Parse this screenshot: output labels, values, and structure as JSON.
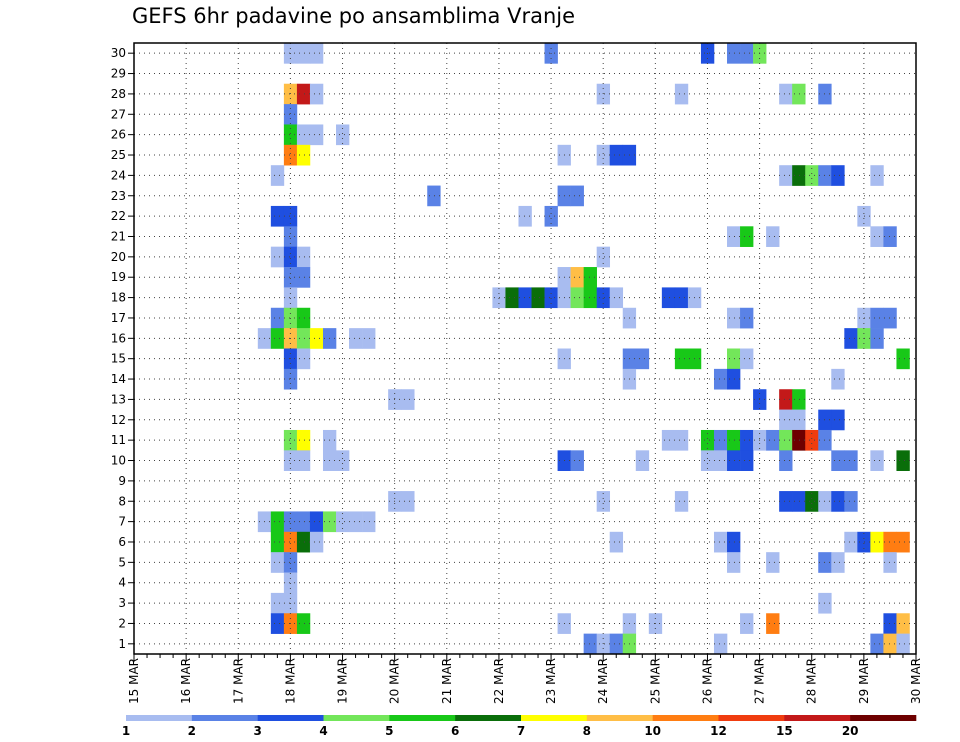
{
  "chart_data": {
    "type": "heatmap",
    "title": "GEFS 6hr padavine po ansamblima Vranje",
    "xlabel": "",
    "ylabel": "",
    "x_tick_labels": [
      "15 MAR",
      "16 MAR",
      "17 MAR",
      "18 MAR",
      "19 MAR",
      "20 MAR",
      "21 MAR",
      "22 MAR",
      "23 MAR",
      "24 MAR",
      "25 MAR",
      "26 MAR",
      "27 MAR",
      "28 MAR",
      "29 MAR",
      "30 MAR"
    ],
    "xlim_days": [
      15,
      30
    ],
    "step_hours": 6,
    "y_tick_labels": [
      "1",
      "2",
      "3",
      "4",
      "5",
      "6",
      "7",
      "8",
      "9",
      "10",
      "11",
      "12",
      "13",
      "14",
      "15",
      "16",
      "17",
      "18",
      "19",
      "20",
      "21",
      "22",
      "23",
      "24",
      "25",
      "26",
      "27",
      "28",
      "29",
      "30"
    ],
    "ylim": [
      0.5,
      30.5
    ],
    "grid": true,
    "legend": {
      "position": "bottom",
      "labels": [
        "1",
        "2",
        "3",
        "4",
        "5",
        "6",
        "7",
        "8",
        "10",
        "12",
        "15",
        "20"
      ],
      "colors": [
        "#a8bcf0",
        "#5a82e6",
        "#1f4fe0",
        "#73e65a",
        "#18c818",
        "#0a6e0a",
        "#ffff00",
        "#ffbe46",
        "#ff7d12",
        "#f03c0f",
        "#c31919",
        "#6e0000"
      ]
    },
    "levels": [
      1,
      2,
      3,
      4,
      5,
      6,
      7,
      8,
      10,
      12,
      15,
      20
    ],
    "cells": [
      {
        "member": 30,
        "time": "18.00",
        "value": 1
      },
      {
        "member": 30,
        "time": "18.25",
        "value": 1
      },
      {
        "member": 30,
        "time": "18.50",
        "value": 1
      },
      {
        "member": 30,
        "time": "23.00",
        "value": 2
      },
      {
        "member": 30,
        "time": "26.00",
        "value": 3
      },
      {
        "member": 30,
        "time": "26.50",
        "value": 2
      },
      {
        "member": 30,
        "time": "26.75",
        "value": 2
      },
      {
        "member": 30,
        "time": "27.00",
        "value": 4
      },
      {
        "member": 28,
        "time": "18.00",
        "value": 8
      },
      {
        "member": 28,
        "time": "18.25",
        "value": 15
      },
      {
        "member": 28,
        "time": "18.50",
        "value": 1
      },
      {
        "member": 28,
        "time": "24.00",
        "value": 1
      },
      {
        "member": 28,
        "time": "25.50",
        "value": 1
      },
      {
        "member": 28,
        "time": "27.50",
        "value": 1
      },
      {
        "member": 28,
        "time": "27.75",
        "value": 4
      },
      {
        "member": 28,
        "time": "28.25",
        "value": 2
      },
      {
        "member": 27,
        "time": "18.00",
        "value": 2
      },
      {
        "member": 26,
        "time": "18.00",
        "value": 5
      },
      {
        "member": 26,
        "time": "18.25",
        "value": 1
      },
      {
        "member": 26,
        "time": "18.50",
        "value": 1
      },
      {
        "member": 26,
        "time": "19.00",
        "value": 1
      },
      {
        "member": 25,
        "time": "18.00",
        "value": 10
      },
      {
        "member": 25,
        "time": "18.25",
        "value": 7
      },
      {
        "member": 25,
        "time": "23.25",
        "value": 1
      },
      {
        "member": 25,
        "time": "24.00",
        "value": 1
      },
      {
        "member": 25,
        "time": "24.25",
        "value": 3
      },
      {
        "member": 25,
        "time": "24.50",
        "value": 3
      },
      {
        "member": 24,
        "time": "17.75",
        "value": 1
      },
      {
        "member": 24,
        "time": "27.50",
        "value": 1
      },
      {
        "member": 24,
        "time": "27.75",
        "value": 6
      },
      {
        "member": 24,
        "time": "28.00",
        "value": 4
      },
      {
        "member": 24,
        "time": "28.25",
        "value": 2
      },
      {
        "member": 24,
        "time": "28.50",
        "value": 3
      },
      {
        "member": 24,
        "time": "29.25",
        "value": 1
      },
      {
        "member": 23,
        "time": "20.75",
        "value": 2
      },
      {
        "member": 23,
        "time": "23.25",
        "value": 2
      },
      {
        "member": 23,
        "time": "23.50",
        "value": 2
      },
      {
        "member": 22,
        "time": "17.75",
        "value": 3
      },
      {
        "member": 22,
        "time": "18.00",
        "value": 3
      },
      {
        "member": 22,
        "time": "22.50",
        "value": 1
      },
      {
        "member": 22,
        "time": "23.00",
        "value": 2
      },
      {
        "member": 22,
        "time": "29.00",
        "value": 1
      },
      {
        "member": 21,
        "time": "18.00",
        "value": 2
      },
      {
        "member": 21,
        "time": "26.50",
        "value": 1
      },
      {
        "member": 21,
        "time": "26.75",
        "value": 5
      },
      {
        "member": 21,
        "time": "27.25",
        "value": 1
      },
      {
        "member": 21,
        "time": "29.25",
        "value": 1
      },
      {
        "member": 21,
        "time": "29.50",
        "value": 2
      },
      {
        "member": 20,
        "time": "17.75",
        "value": 1
      },
      {
        "member": 20,
        "time": "18.00",
        "value": 3
      },
      {
        "member": 20,
        "time": "18.25",
        "value": 1
      },
      {
        "member": 20,
        "time": "24.00",
        "value": 1
      },
      {
        "member": 19,
        "time": "18.00",
        "value": 2
      },
      {
        "member": 19,
        "time": "18.25",
        "value": 2
      },
      {
        "member": 19,
        "time": "23.25",
        "value": 1
      },
      {
        "member": 19,
        "time": "23.50",
        "value": 8
      },
      {
        "member": 19,
        "time": "23.75",
        "value": 5
      },
      {
        "member": 18,
        "time": "18.00",
        "value": 1
      },
      {
        "member": 18,
        "time": "22.00",
        "value": 1
      },
      {
        "member": 18,
        "time": "22.25",
        "value": 6
      },
      {
        "member": 18,
        "time": "22.50",
        "value": 3
      },
      {
        "member": 18,
        "time": "22.75",
        "value": 6
      },
      {
        "member": 18,
        "time": "23.00",
        "value": 3
      },
      {
        "member": 18,
        "time": "23.25",
        "value": 1
      },
      {
        "member": 18,
        "time": "23.50",
        "value": 4
      },
      {
        "member": 18,
        "time": "23.75",
        "value": 5
      },
      {
        "member": 18,
        "time": "24.00",
        "value": 3
      },
      {
        "member": 18,
        "time": "24.25",
        "value": 1
      },
      {
        "member": 18,
        "time": "25.25",
        "value": 3
      },
      {
        "member": 18,
        "time": "25.50",
        "value": 3
      },
      {
        "member": 18,
        "time": "25.75",
        "value": 1
      },
      {
        "member": 17,
        "time": "17.75",
        "value": 2
      },
      {
        "member": 17,
        "time": "18.00",
        "value": 4
      },
      {
        "member": 17,
        "time": "18.25",
        "value": 5
      },
      {
        "member": 17,
        "time": "24.50",
        "value": 1
      },
      {
        "member": 17,
        "time": "26.50",
        "value": 1
      },
      {
        "member": 17,
        "time": "26.75",
        "value": 2
      },
      {
        "member": 17,
        "time": "29.00",
        "value": 1
      },
      {
        "member": 17,
        "time": "29.25",
        "value": 2
      },
      {
        "member": 17,
        "time": "29.50",
        "value": 2
      },
      {
        "member": 16,
        "time": "17.50",
        "value": 1
      },
      {
        "member": 16,
        "time": "17.75",
        "value": 5
      },
      {
        "member": 16,
        "time": "18.00",
        "value": 8
      },
      {
        "member": 16,
        "time": "18.25",
        "value": 4
      },
      {
        "member": 16,
        "time": "18.50",
        "value": 7
      },
      {
        "member": 16,
        "time": "18.75",
        "value": 2
      },
      {
        "member": 16,
        "time": "19.25",
        "value": 1
      },
      {
        "member": 16,
        "time": "19.50",
        "value": 1
      },
      {
        "member": 16,
        "time": "28.75",
        "value": 3
      },
      {
        "member": 16,
        "time": "29.00",
        "value": 4
      },
      {
        "member": 16,
        "time": "29.25",
        "value": 2
      },
      {
        "member": 15,
        "time": "18.00",
        "value": 3
      },
      {
        "member": 15,
        "time": "18.25",
        "value": 1
      },
      {
        "member": 15,
        "time": "23.25",
        "value": 1
      },
      {
        "member": 15,
        "time": "24.50",
        "value": 2
      },
      {
        "member": 15,
        "time": "24.75",
        "value": 2
      },
      {
        "member": 15,
        "time": "25.50",
        "value": 5
      },
      {
        "member": 15,
        "time": "25.75",
        "value": 5
      },
      {
        "member": 15,
        "time": "26.50",
        "value": 4
      },
      {
        "member": 15,
        "time": "26.75",
        "value": 1
      },
      {
        "member": 15,
        "time": "29.75",
        "value": 5
      },
      {
        "member": 14,
        "time": "18.00",
        "value": 2
      },
      {
        "member": 14,
        "time": "24.50",
        "value": 1
      },
      {
        "member": 14,
        "time": "26.25",
        "value": 2
      },
      {
        "member": 14,
        "time": "26.50",
        "value": 3
      },
      {
        "member": 14,
        "time": "28.50",
        "value": 1
      },
      {
        "member": 13,
        "time": "20.00",
        "value": 1
      },
      {
        "member": 13,
        "time": "20.25",
        "value": 1
      },
      {
        "member": 13,
        "time": "27.00",
        "value": 3
      },
      {
        "member": 13,
        "time": "27.50",
        "value": 15
      },
      {
        "member": 13,
        "time": "27.75",
        "value": 5
      },
      {
        "member": 12,
        "time": "27.50",
        "value": 1
      },
      {
        "member": 12,
        "time": "27.75",
        "value": 1
      },
      {
        "member": 12,
        "time": "28.25",
        "value": 3
      },
      {
        "member": 12,
        "time": "28.50",
        "value": 3
      },
      {
        "member": 11,
        "time": "18.00",
        "value": 4
      },
      {
        "member": 11,
        "time": "18.25",
        "value": 7
      },
      {
        "member": 11,
        "time": "18.75",
        "value": 1
      },
      {
        "member": 11,
        "time": "25.25",
        "value": 1
      },
      {
        "member": 11,
        "time": "25.50",
        "value": 1
      },
      {
        "member": 11,
        "time": "26.00",
        "value": 5
      },
      {
        "member": 11,
        "time": "26.25",
        "value": 2
      },
      {
        "member": 11,
        "time": "26.50",
        "value": 5
      },
      {
        "member": 11,
        "time": "26.75",
        "value": 3
      },
      {
        "member": 11,
        "time": "27.00",
        "value": 1
      },
      {
        "member": 11,
        "time": "27.25",
        "value": 2
      },
      {
        "member": 11,
        "time": "27.50",
        "value": 4
      },
      {
        "member": 11,
        "time": "27.75",
        "value": 20
      },
      {
        "member": 11,
        "time": "28.00",
        "value": 12
      },
      {
        "member": 11,
        "time": "28.25",
        "value": 2
      },
      {
        "member": 10,
        "time": "18.00",
        "value": 1
      },
      {
        "member": 10,
        "time": "18.25",
        "value": 1
      },
      {
        "member": 10,
        "time": "18.75",
        "value": 1
      },
      {
        "member": 10,
        "time": "19.00",
        "value": 1
      },
      {
        "member": 10,
        "time": "23.25",
        "value": 3
      },
      {
        "member": 10,
        "time": "23.50",
        "value": 2
      },
      {
        "member": 10,
        "time": "24.75",
        "value": 1
      },
      {
        "member": 10,
        "time": "26.00",
        "value": 1
      },
      {
        "member": 10,
        "time": "26.25",
        "value": 1
      },
      {
        "member": 10,
        "time": "26.50",
        "value": 3
      },
      {
        "member": 10,
        "time": "26.75",
        "value": 3
      },
      {
        "member": 10,
        "time": "27.50",
        "value": 2
      },
      {
        "member": 10,
        "time": "28.50",
        "value": 2
      },
      {
        "member": 10,
        "time": "28.75",
        "value": 2
      },
      {
        "member": 10,
        "time": "29.25",
        "value": 1
      },
      {
        "member": 10,
        "time": "29.75",
        "value": 6
      },
      {
        "member": 8,
        "time": "20.00",
        "value": 1
      },
      {
        "member": 8,
        "time": "20.25",
        "value": 1
      },
      {
        "member": 8,
        "time": "24.00",
        "value": 1
      },
      {
        "member": 8,
        "time": "25.50",
        "value": 1
      },
      {
        "member": 8,
        "time": "27.50",
        "value": 3
      },
      {
        "member": 8,
        "time": "27.75",
        "value": 3
      },
      {
        "member": 8,
        "time": "28.00",
        "value": 6
      },
      {
        "member": 8,
        "time": "28.25",
        "value": 1
      },
      {
        "member": 8,
        "time": "28.50",
        "value": 3
      },
      {
        "member": 8,
        "time": "28.75",
        "value": 2
      },
      {
        "member": 7,
        "time": "17.50",
        "value": 1
      },
      {
        "member": 7,
        "time": "17.75",
        "value": 5
      },
      {
        "member": 7,
        "time": "18.00",
        "value": 2
      },
      {
        "member": 7,
        "time": "18.25",
        "value": 2
      },
      {
        "member": 7,
        "time": "18.50",
        "value": 3
      },
      {
        "member": 7,
        "time": "18.75",
        "value": 4
      },
      {
        "member": 7,
        "time": "19.00",
        "value": 1
      },
      {
        "member": 7,
        "time": "19.25",
        "value": 1
      },
      {
        "member": 7,
        "time": "19.50",
        "value": 1
      },
      {
        "member": 6,
        "time": "17.75",
        "value": 5
      },
      {
        "member": 6,
        "time": "18.00",
        "value": 10
      },
      {
        "member": 6,
        "time": "18.25",
        "value": 6
      },
      {
        "member": 6,
        "time": "18.50",
        "value": 1
      },
      {
        "member": 6,
        "time": "24.25",
        "value": 1
      },
      {
        "member": 6,
        "time": "26.25",
        "value": 1
      },
      {
        "member": 6,
        "time": "26.50",
        "value": 3
      },
      {
        "member": 6,
        "time": "28.75",
        "value": 1
      },
      {
        "member": 6,
        "time": "29.00",
        "value": 3
      },
      {
        "member": 6,
        "time": "29.25",
        "value": 7
      },
      {
        "member": 6,
        "time": "29.50",
        "value": 10
      },
      {
        "member": 6,
        "time": "29.75",
        "value": 10
      },
      {
        "member": 5,
        "time": "17.75",
        "value": 1
      },
      {
        "member": 5,
        "time": "18.00",
        "value": 2
      },
      {
        "member": 5,
        "time": "26.50",
        "value": 1
      },
      {
        "member": 5,
        "time": "27.25",
        "value": 1
      },
      {
        "member": 5,
        "time": "28.25",
        "value": 2
      },
      {
        "member": 5,
        "time": "28.50",
        "value": 1
      },
      {
        "member": 5,
        "time": "29.50",
        "value": 1
      },
      {
        "member": 4,
        "time": "18.00",
        "value": 1
      },
      {
        "member": 3,
        "time": "17.75",
        "value": 1
      },
      {
        "member": 3,
        "time": "18.00",
        "value": 1
      },
      {
        "member": 3,
        "time": "28.25",
        "value": 1
      },
      {
        "member": 2,
        "time": "17.75",
        "value": 3
      },
      {
        "member": 2,
        "time": "18.00",
        "value": 10
      },
      {
        "member": 2,
        "time": "18.25",
        "value": 5
      },
      {
        "member": 2,
        "time": "23.25",
        "value": 1
      },
      {
        "member": 2,
        "time": "24.50",
        "value": 1
      },
      {
        "member": 2,
        "time": "25.00",
        "value": 1
      },
      {
        "member": 2,
        "time": "26.75",
        "value": 1
      },
      {
        "member": 2,
        "time": "27.25",
        "value": 10
      },
      {
        "member": 2,
        "time": "29.50",
        "value": 3
      },
      {
        "member": 2,
        "time": "29.75",
        "value": 8
      },
      {
        "member": 1,
        "time": "23.75",
        "value": 2
      },
      {
        "member": 1,
        "time": "24.00",
        "value": 1
      },
      {
        "member": 1,
        "time": "24.25",
        "value": 2
      },
      {
        "member": 1,
        "time": "24.50",
        "value": 4
      },
      {
        "member": 1,
        "time": "26.25",
        "value": 1
      },
      {
        "member": 1,
        "time": "29.25",
        "value": 2
      },
      {
        "member": 1,
        "time": "29.50",
        "value": 8
      },
      {
        "member": 1,
        "time": "29.75",
        "value": 1
      }
    ]
  }
}
